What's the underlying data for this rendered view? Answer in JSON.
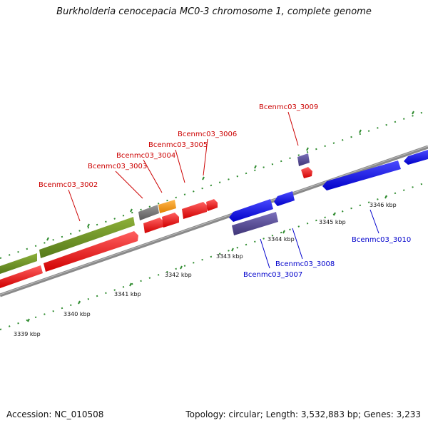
{
  "title": "Burkholderia cenocepacia MC0-3 chromosome 1, complete genome",
  "footer": {
    "accession": "Accession: NC_010508",
    "topology": "Topology: circular; Length: 3,532,883 bp; Genes: 3,233"
  },
  "ruler": {
    "unit": "kbp",
    "ticks": [
      {
        "label": "3339 kbp"
      },
      {
        "label": "3340 kbp"
      },
      {
        "label": "3341 kbp"
      },
      {
        "label": "3342 kbp"
      },
      {
        "label": "3343 kbp"
      },
      {
        "label": "3344 kbp"
      },
      {
        "label": "3345 kbp"
      },
      {
        "label": "3346 kbp"
      }
    ]
  },
  "colors": {
    "forward_gene": "#ff0000",
    "reverse_gene": "#0000ff",
    "forward_label": "#cc0000",
    "reverse_label": "#0000cc",
    "backbone": "#888888",
    "ruler_ticks": "#2e8b2e",
    "olive_feature": "#6b8e23",
    "orange_feature": "#ff9900",
    "gray_feature": "#777777",
    "slate_feature": "#5b4f9a"
  },
  "genes": [
    {
      "label": "Bcenmc03_3002",
      "strand": "forward"
    },
    {
      "label": "Bcenmc03_3003",
      "strand": "forward"
    },
    {
      "label": "Bcenmc03_3004",
      "strand": "forward"
    },
    {
      "label": "Bcenmc03_3005",
      "strand": "forward"
    },
    {
      "label": "Bcenmc03_3006",
      "strand": "forward"
    },
    {
      "label": "Bcenmc03_3009",
      "strand": "forward"
    },
    {
      "label": "Bcenmc03_3007",
      "strand": "reverse"
    },
    {
      "label": "Bcenmc03_3008",
      "strand": "reverse"
    },
    {
      "label": "Bcenmc03_3010",
      "strand": "reverse"
    }
  ]
}
